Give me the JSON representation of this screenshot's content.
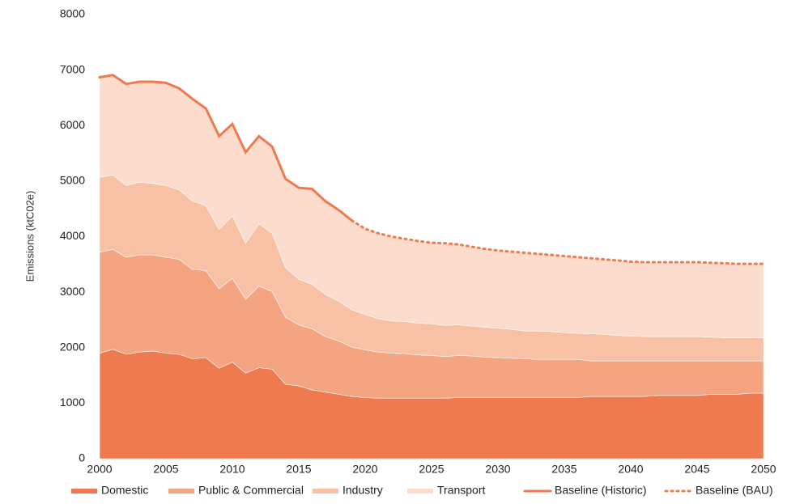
{
  "chart_data": {
    "type": "area",
    "y_label": "Emissions (ktC02e)",
    "x": [
      2000,
      2001,
      2002,
      2003,
      2004,
      2005,
      2006,
      2007,
      2008,
      2009,
      2010,
      2011,
      2012,
      2013,
      2014,
      2015,
      2016,
      2017,
      2018,
      2019,
      2020,
      2021,
      2022,
      2023,
      2024,
      2025,
      2026,
      2027,
      2028,
      2029,
      2030,
      2031,
      2032,
      2033,
      2034,
      2035,
      2036,
      2037,
      2038,
      2039,
      2040,
      2041,
      2042,
      2043,
      2044,
      2045,
      2046,
      2047,
      2048,
      2049,
      2050
    ],
    "xlim": [
      2000,
      2050
    ],
    "xticks": [
      2000,
      2005,
      2010,
      2015,
      2020,
      2025,
      2030,
      2035,
      2040,
      2045,
      2050
    ],
    "ylim": [
      0,
      8000
    ],
    "yticks": [
      0,
      1000,
      2000,
      3000,
      4000,
      5000,
      6000,
      7000,
      8000
    ],
    "grid": false,
    "stacked": true,
    "legend": "bottom",
    "series": [
      {
        "name": "Domestic",
        "kind": "area",
        "color": "#f07a4f",
        "values": [
          1900,
          1970,
          1880,
          1920,
          1940,
          1900,
          1880,
          1800,
          1820,
          1630,
          1740,
          1540,
          1640,
          1610,
          1340,
          1310,
          1240,
          1200,
          1160,
          1120,
          1100,
          1090,
          1090,
          1090,
          1090,
          1090,
          1090,
          1100,
          1100,
          1100,
          1100,
          1100,
          1100,
          1100,
          1100,
          1100,
          1100,
          1120,
          1120,
          1120,
          1120,
          1120,
          1140,
          1140,
          1140,
          1140,
          1160,
          1160,
          1160,
          1180,
          1180
        ]
      },
      {
        "name": "Public & Commercial",
        "kind": "area",
        "color": "#f5a482",
        "values": [
          1820,
          1800,
          1750,
          1750,
          1730,
          1730,
          1710,
          1610,
          1570,
          1430,
          1510,
          1330,
          1470,
          1400,
          1210,
          1100,
          1100,
          1000,
          960,
          890,
          860,
          830,
          810,
          800,
          780,
          770,
          750,
          760,
          750,
          730,
          720,
          710,
          700,
          690,
          690,
          690,
          690,
          640,
          640,
          640,
          640,
          640,
          620,
          620,
          620,
          620,
          600,
          600,
          600,
          580,
          580
        ]
      },
      {
        "name": "Industry",
        "kind": "area",
        "color": "#f8c0a5",
        "values": [
          1350,
          1340,
          1290,
          1310,
          1290,
          1290,
          1250,
          1230,
          1170,
          1070,
          1120,
          1010,
          1120,
          1050,
          890,
          820,
          800,
          760,
          720,
          670,
          640,
          600,
          580,
          580,
          570,
          570,
          560,
          550,
          540,
          540,
          530,
          520,
          500,
          510,
          500,
          480,
          470,
          490,
          480,
          460,
          450,
          440,
          440,
          440,
          440,
          440,
          430,
          420,
          420,
          420,
          420
        ]
      },
      {
        "name": "Transport",
        "kind": "area",
        "color": "#fcdccc",
        "values": [
          1800,
          1800,
          1830,
          1810,
          1830,
          1850,
          1830,
          1840,
          1750,
          1680,
          1660,
          1640,
          1580,
          1560,
          1600,
          1650,
          1720,
          1680,
          1640,
          1610,
          1540,
          1540,
          1520,
          1490,
          1480,
          1460,
          1480,
          1450,
          1430,
          1410,
          1400,
          1400,
          1410,
          1390,
          1380,
          1380,
          1370,
          1360,
          1350,
          1350,
          1340,
          1340,
          1340,
          1340,
          1340,
          1340,
          1340,
          1340,
          1330,
          1330,
          1330
        ]
      },
      {
        "name": "Baseline (Historic)",
        "kind": "line",
        "style": "solid",
        "color": "#f07a4f",
        "values": [
          6870,
          6910,
          6750,
          6790,
          6790,
          6770,
          6670,
          6480,
          6310,
          5810,
          6030,
          5520,
          5810,
          5620,
          5040,
          4880,
          4860,
          4640,
          4480,
          4290,
          null,
          null,
          null,
          null,
          null,
          null,
          null,
          null,
          null,
          null,
          null,
          null,
          null,
          null,
          null,
          null,
          null,
          null,
          null,
          null,
          null,
          null,
          null,
          null,
          null,
          null,
          null,
          null,
          null,
          null,
          null
        ]
      },
      {
        "name": "Baseline (BAU)",
        "kind": "line",
        "style": "dotted",
        "color": "#f07a4f",
        "values": [
          null,
          null,
          null,
          null,
          null,
          null,
          null,
          null,
          null,
          null,
          null,
          null,
          null,
          null,
          null,
          null,
          null,
          null,
          null,
          4290,
          4140,
          4060,
          4000,
          3960,
          3920,
          3890,
          3880,
          3860,
          3820,
          3780,
          3750,
          3730,
          3710,
          3690,
          3670,
          3650,
          3630,
          3610,
          3590,
          3570,
          3550,
          3540,
          3540,
          3540,
          3540,
          3540,
          3530,
          3520,
          3510,
          3510,
          3510
        ]
      }
    ]
  }
}
